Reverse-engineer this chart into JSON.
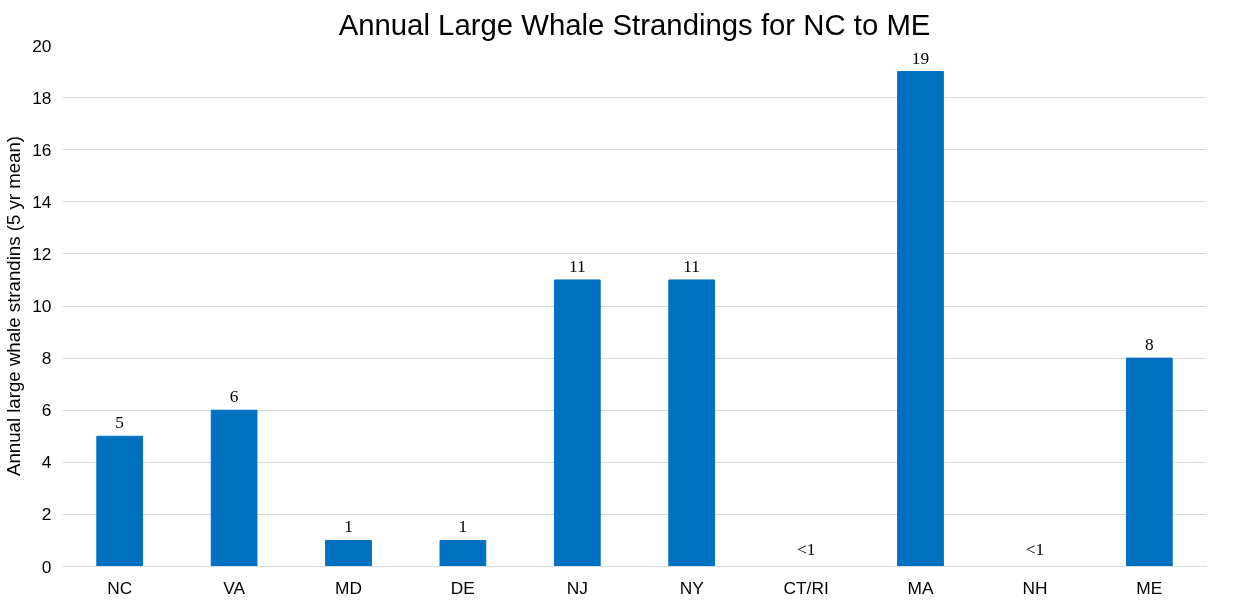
{
  "chart_data": {
    "type": "bar",
    "title": "Annual Large Whale Strandings for NC to ME",
    "ylabel": "Annual large whale strandins (5 yr mean)",
    "categories": [
      "NC",
      "VA",
      "MD",
      "DE",
      "NJ",
      "NY",
      "CT/RI",
      "MA",
      "NH",
      "ME"
    ],
    "values": [
      5,
      6,
      1,
      1,
      11,
      11,
      0,
      19,
      0,
      8
    ],
    "value_labels": [
      "5",
      "6",
      "1",
      "1",
      "11",
      "11",
      "<1",
      "19",
      "<1",
      "8"
    ],
    "color": "#0070c0",
    "ylim": [
      0,
      20
    ],
    "yticks": [
      0,
      2,
      4,
      6,
      8,
      10,
      12,
      14,
      16,
      18,
      20
    ],
    "grid": "y"
  }
}
